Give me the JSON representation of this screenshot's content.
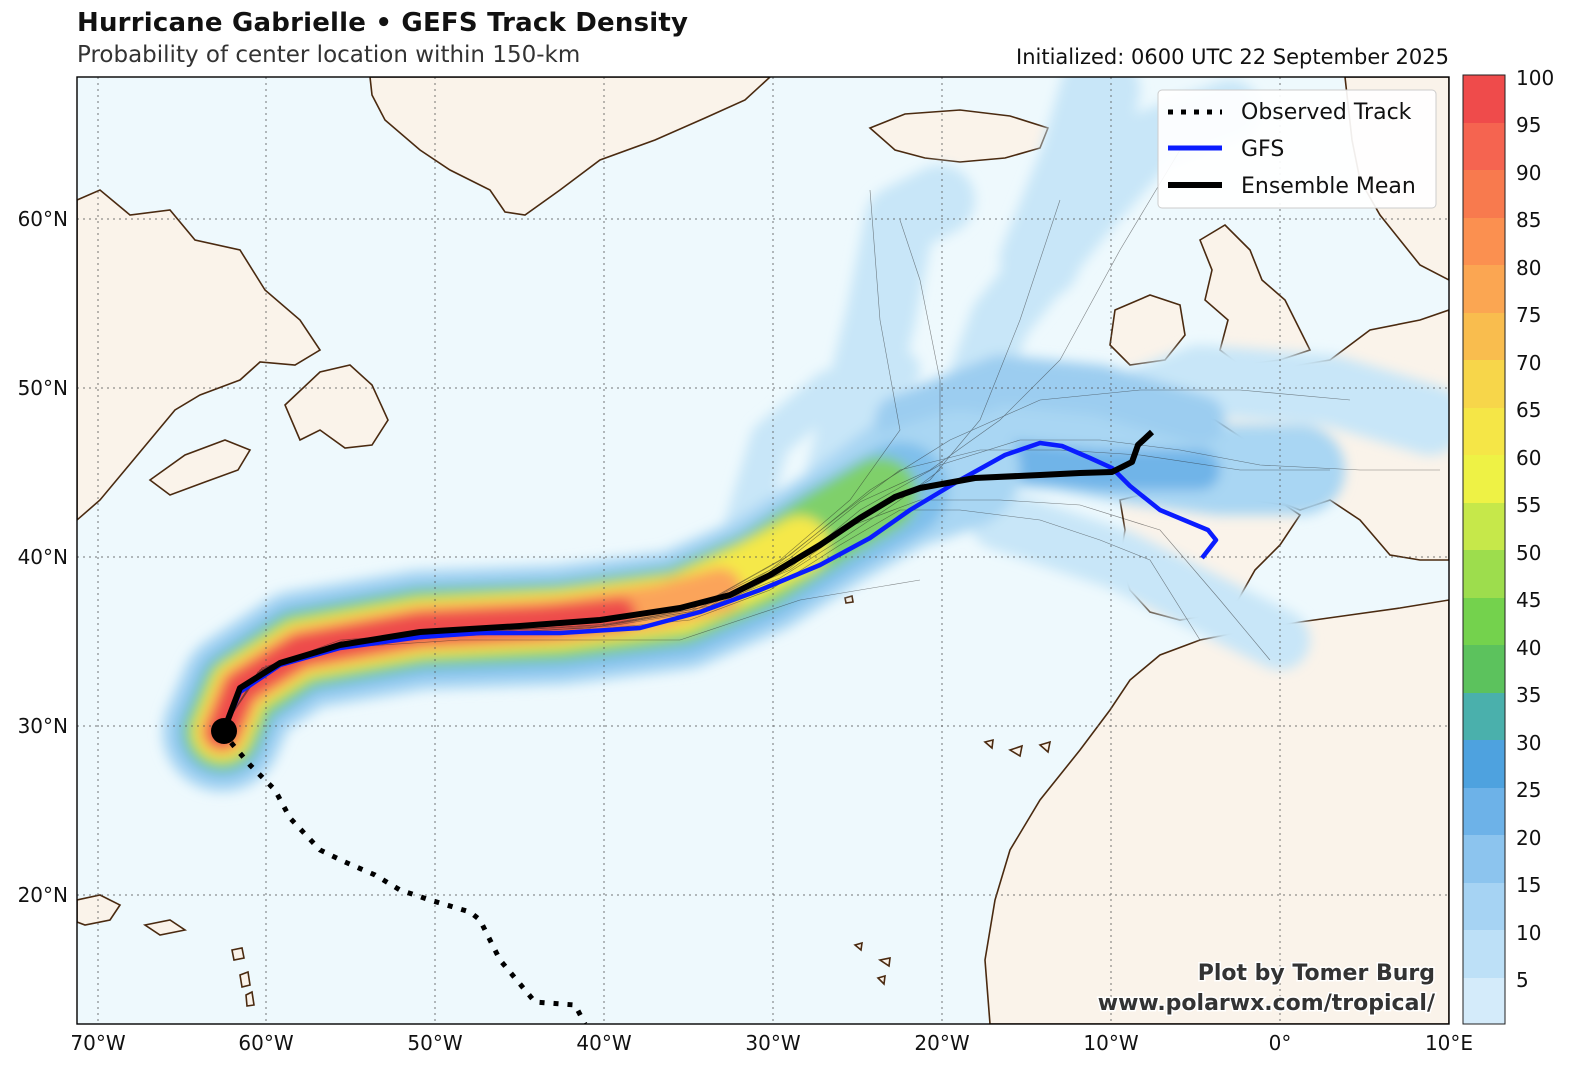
{
  "header": {
    "title": "Hurricane Gabrielle • GEFS Track Density",
    "subtitle": "Probability of center location within 150-km",
    "initialized": "Initialized: 0600 UTC 22 September 2025"
  },
  "map": {
    "lat_labels": [
      "60°N",
      "50°N",
      "40°N",
      "30°N",
      "20°N"
    ],
    "lon_labels": [
      "70°W",
      "60°W",
      "50°W",
      "40°W",
      "30°W",
      "20°W",
      "10°W",
      "0°",
      "10°E"
    ],
    "credit_line1": "Plot by Tomer Burg",
    "credit_line2": "www.polarwx.com/tropical/"
  },
  "legend": {
    "observed": "Observed Track",
    "gfs": "GFS",
    "mean": "Ensemble Mean"
  },
  "colorbar": {
    "ticks": [
      "100",
      "95",
      "90",
      "85",
      "80",
      "75",
      "70",
      "65",
      "60",
      "55",
      "50",
      "45",
      "40",
      "35",
      "30",
      "25",
      "20",
      "15",
      "10",
      "5"
    ]
  },
  "colors": {
    "ocean": "#eef9fd",
    "land": "#faf3ea",
    "coast": "#4a2a10",
    "gfs": "#0a1cff",
    "mean": "#000000"
  }
}
